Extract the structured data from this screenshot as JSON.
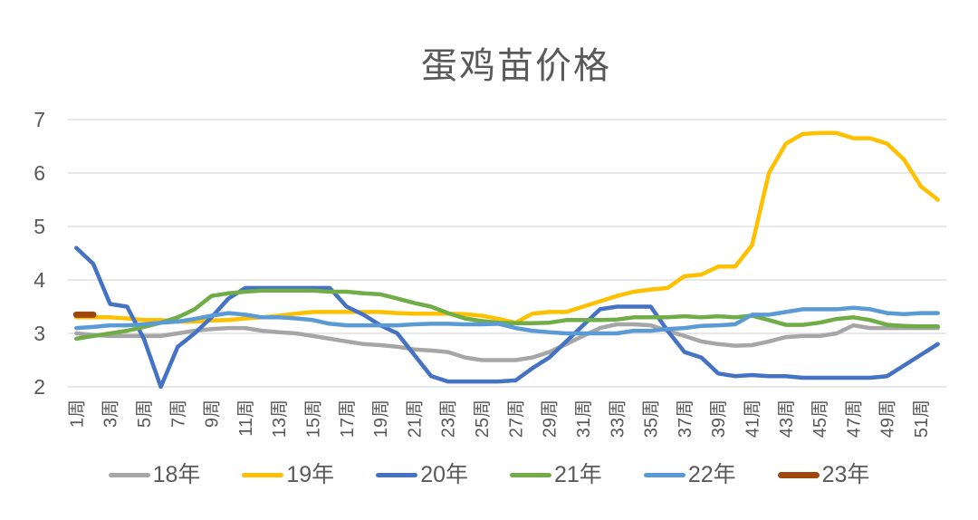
{
  "title": "蛋鸡苗价格",
  "text_color": "#595959",
  "grid_color": "#D9D9D9",
  "chart_data": {
    "type": "line",
    "title": "蛋鸡苗价格",
    "xlabel": "",
    "ylabel": "",
    "x_unit": "周",
    "x": [
      1,
      2,
      3,
      4,
      5,
      6,
      7,
      8,
      9,
      10,
      11,
      12,
      13,
      14,
      15,
      16,
      17,
      18,
      19,
      20,
      21,
      22,
      23,
      24,
      25,
      26,
      27,
      28,
      29,
      30,
      31,
      32,
      33,
      34,
      35,
      36,
      37,
      38,
      39,
      40,
      41,
      42,
      43,
      44,
      45,
      46,
      47,
      48,
      49,
      50,
      51,
      52
    ],
    "x_tick_labels": [
      "1周",
      "3周",
      "5周",
      "7周",
      "9周",
      "11周",
      "13周",
      "15周",
      "17周",
      "19周",
      "21周",
      "23周",
      "25周",
      "27周",
      "29周",
      "31周",
      "33周",
      "35周",
      "37周",
      "39周",
      "41周",
      "43周",
      "45周",
      "47周",
      "49周",
      "51周"
    ],
    "x_tick_rotation": -90,
    "ylim": [
      2,
      7
    ],
    "y_ticks": [
      2,
      3,
      4,
      5,
      6,
      7
    ],
    "grid": "horizontal",
    "legend_position": "bottom",
    "series": [
      {
        "name": "18年",
        "color": "#A6A6A6",
        "stroke_width": 4.5,
        "values": [
          3.0,
          2.97,
          2.95,
          2.95,
          2.95,
          2.95,
          3.0,
          3.05,
          3.08,
          3.1,
          3.1,
          3.05,
          3.02,
          3.0,
          2.95,
          2.9,
          2.85,
          2.8,
          2.78,
          2.75,
          2.7,
          2.68,
          2.65,
          2.55,
          2.5,
          2.5,
          2.5,
          2.55,
          2.65,
          2.8,
          2.95,
          3.1,
          3.17,
          3.17,
          3.15,
          3.05,
          2.95,
          2.85,
          2.8,
          2.77,
          2.78,
          2.85,
          2.93,
          2.95,
          2.95,
          3.0,
          3.15,
          3.1,
          3.1,
          3.1,
          3.1,
          3.1
        ]
      },
      {
        "name": "19年",
        "color": "#FFC000",
        "stroke_width": 4.5,
        "values": [
          3.3,
          3.3,
          3.3,
          3.28,
          3.25,
          3.25,
          3.22,
          3.22,
          3.24,
          3.25,
          3.28,
          3.3,
          3.33,
          3.37,
          3.4,
          3.4,
          3.4,
          3.4,
          3.4,
          3.38,
          3.37,
          3.37,
          3.37,
          3.36,
          3.33,
          3.27,
          3.2,
          3.37,
          3.4,
          3.4,
          3.5,
          3.6,
          3.7,
          3.78,
          3.82,
          3.85,
          4.07,
          4.1,
          4.25,
          4.25,
          4.65,
          6.0,
          6.55,
          6.73,
          6.75,
          6.75,
          6.65,
          6.65,
          6.55,
          6.25,
          5.75,
          5.5
        ]
      },
      {
        "name": "20年",
        "color": "#4472C4",
        "stroke_width": 4.5,
        "values": [
          4.6,
          4.3,
          3.55,
          3.5,
          2.9,
          2.0,
          2.75,
          3.0,
          3.3,
          3.65,
          3.85,
          3.85,
          3.85,
          3.85,
          3.85,
          3.85,
          3.5,
          3.35,
          3.15,
          3.0,
          2.6,
          2.2,
          2.1,
          2.1,
          2.1,
          2.1,
          2.12,
          2.35,
          2.55,
          2.85,
          3.15,
          3.45,
          3.5,
          3.5,
          3.5,
          3.05,
          2.65,
          2.55,
          2.25,
          2.2,
          2.22,
          2.2,
          2.2,
          2.17,
          2.17,
          2.17,
          2.17,
          2.17,
          2.2,
          2.4,
          2.6,
          2.8
        ]
      },
      {
        "name": "21年",
        "color": "#70AD47",
        "stroke_width": 4.5,
        "values": [
          2.9,
          2.95,
          3.0,
          3.05,
          3.12,
          3.2,
          3.3,
          3.45,
          3.7,
          3.75,
          3.78,
          3.8,
          3.8,
          3.8,
          3.8,
          3.78,
          3.78,
          3.75,
          3.73,
          3.65,
          3.57,
          3.5,
          3.38,
          3.28,
          3.23,
          3.2,
          3.19,
          3.19,
          3.2,
          3.25,
          3.25,
          3.25,
          3.26,
          3.3,
          3.3,
          3.3,
          3.32,
          3.3,
          3.32,
          3.3,
          3.33,
          3.25,
          3.16,
          3.16,
          3.2,
          3.27,
          3.3,
          3.25,
          3.16,
          3.14,
          3.13,
          3.13
        ]
      },
      {
        "name": "22年",
        "color": "#5B9BD5",
        "stroke_width": 4.5,
        "values": [
          3.1,
          3.12,
          3.15,
          3.15,
          3.17,
          3.2,
          3.22,
          3.27,
          3.33,
          3.38,
          3.35,
          3.3,
          3.3,
          3.28,
          3.25,
          3.18,
          3.15,
          3.15,
          3.15,
          3.15,
          3.17,
          3.18,
          3.18,
          3.17,
          3.17,
          3.18,
          3.1,
          3.05,
          3.02,
          3.0,
          3.0,
          3.0,
          3.0,
          3.05,
          3.05,
          3.08,
          3.1,
          3.14,
          3.15,
          3.17,
          3.35,
          3.35,
          3.4,
          3.45,
          3.45,
          3.45,
          3.48,
          3.45,
          3.38,
          3.36,
          3.38,
          3.38
        ]
      },
      {
        "name": "23年",
        "color": "#9E480E",
        "stroke_width": 7,
        "values": [
          3.35,
          3.35
        ]
      }
    ]
  }
}
